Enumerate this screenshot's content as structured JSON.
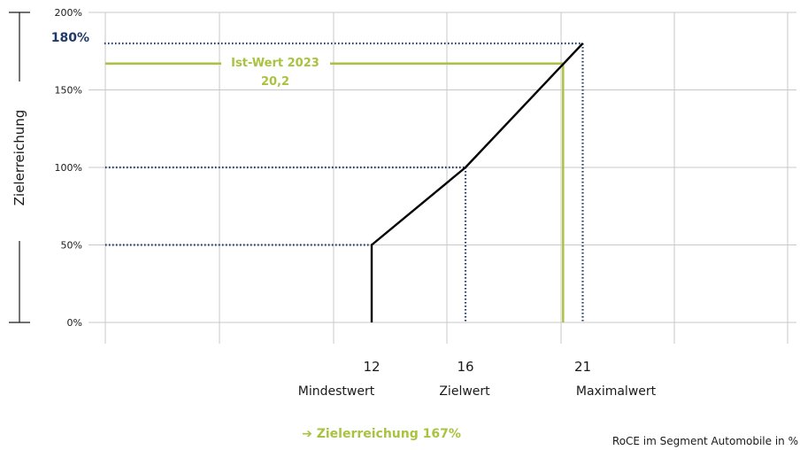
{
  "chart_data": {
    "type": "line",
    "ylabel": "Zielerreichung",
    "xlabel": "RoCE im Segment Automobile in %",
    "y_ticks": [
      {
        "value": 0,
        "label": "0%"
      },
      {
        "value": 50,
        "label": "50%"
      },
      {
        "value": 100,
        "label": "100%"
      },
      {
        "value": 150,
        "label": "150%"
      },
      {
        "value": 200,
        "label": "200%"
      }
    ],
    "ylim": [
      0,
      200
    ],
    "grid": true,
    "series": [
      {
        "points": [
          [
            12,
            0
          ],
          [
            12,
            50
          ],
          [
            16,
            100
          ],
          [
            21,
            180
          ]
        ]
      }
    ],
    "thresholds": [
      {
        "x": 12,
        "y": 50,
        "x_label": "12",
        "name": "Mindestwert"
      },
      {
        "x": 16,
        "y": 100,
        "x_label": "16",
        "name": "Zielwert"
      },
      {
        "x": 21,
        "y": 180,
        "x_label": "21",
        "name": "Maximalwert"
      }
    ],
    "max_label": "180%",
    "actual": {
      "label": "Ist-Wert 2023",
      "value_label": "20,2",
      "x": 20.2,
      "y": 167
    },
    "result_text": "➔ Zielerreichung 167%",
    "colors": {
      "line": "#000000",
      "dotted": "#1f3a68",
      "actual": "#a9c23f",
      "grid": "#c8c8c8"
    }
  }
}
